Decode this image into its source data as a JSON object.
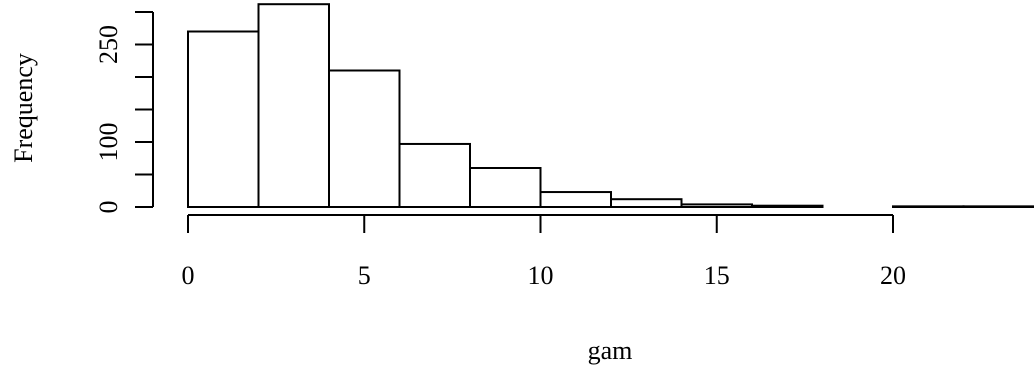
{
  "chart_data": {
    "type": "bar",
    "title": "",
    "xlabel": "gam",
    "ylabel": "Frequency",
    "bins": [
      {
        "start": 0,
        "end": 2,
        "count": 270
      },
      {
        "start": 2,
        "end": 4,
        "count": 312
      },
      {
        "start": 4,
        "end": 6,
        "count": 210
      },
      {
        "start": 6,
        "end": 8,
        "count": 97
      },
      {
        "start": 8,
        "end": 10,
        "count": 60
      },
      {
        "start": 10,
        "end": 12,
        "count": 23
      },
      {
        "start": 12,
        "end": 14,
        "count": 12
      },
      {
        "start": 14,
        "end": 16,
        "count": 4
      },
      {
        "start": 16,
        "end": 18,
        "count": 2
      },
      {
        "start": 18,
        "end": 20,
        "count": 0
      },
      {
        "start": 20,
        "end": 22,
        "count": 1
      },
      {
        "start": 22,
        "end": 24,
        "count": 1
      }
    ],
    "x_ticks": [
      0,
      5,
      10,
      15,
      20
    ],
    "x_tick_labels": [
      "0",
      "5",
      "10",
      "15",
      "20"
    ],
    "y_ticks": [
      0,
      50,
      100,
      150,
      200,
      250,
      300
    ],
    "y_tick_labels_visible": [
      {
        "value": 0,
        "label": "0"
      },
      {
        "value": 100,
        "label": "100"
      },
      {
        "value": 250,
        "label": "250"
      }
    ],
    "xlim": [
      0,
      24
    ],
    "ylim": [
      0,
      312
    ],
    "grid": false,
    "legend": "none"
  }
}
